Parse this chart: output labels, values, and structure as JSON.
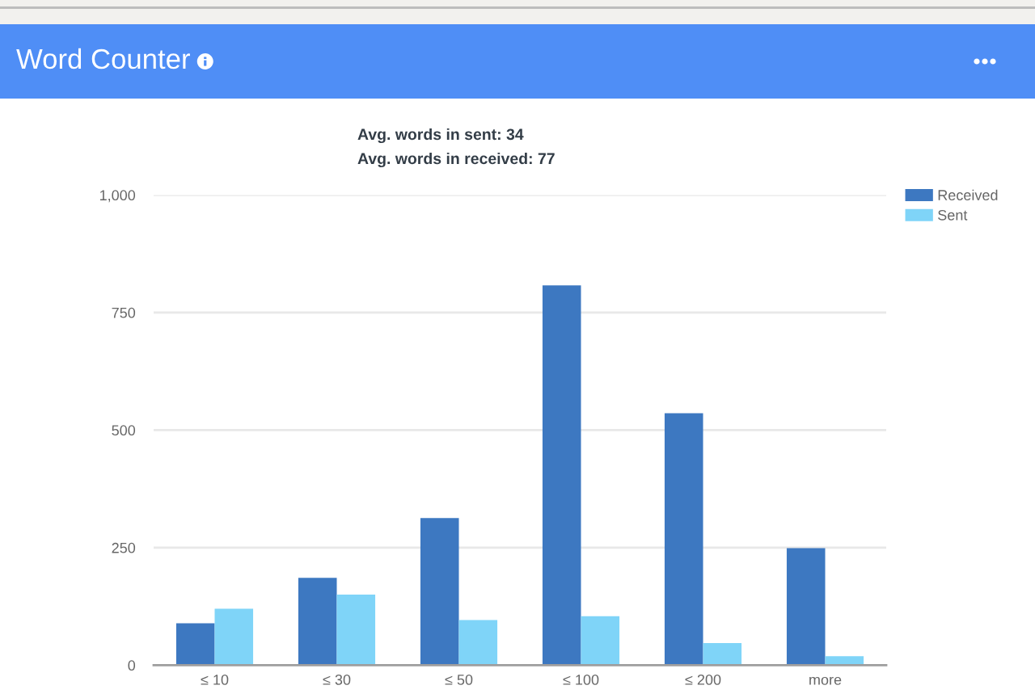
{
  "chart_data": {
    "type": "bar",
    "title": "Word Counter",
    "annotations": [
      "Avg. words in sent: 34",
      "Avg. words in received: 77"
    ],
    "categories": [
      "≤ 10",
      "≤ 30",
      "≤ 50",
      "≤ 100",
      "≤ 200",
      "more"
    ],
    "series": [
      {
        "name": "Received",
        "color": "#3d78c1",
        "values": [
          89,
          186,
          313,
          808,
          536,
          249
        ]
      },
      {
        "name": "Sent",
        "color": "#7fd4f8",
        "values": [
          120,
          150,
          96,
          104,
          47,
          19
        ]
      }
    ],
    "ylim": [
      0,
      1000
    ],
    "yticks": [
      0,
      250,
      500,
      750,
      {
        "value": 1000,
        "label": "1,000"
      }
    ],
    "grid": "y",
    "legend": "top right"
  }
}
